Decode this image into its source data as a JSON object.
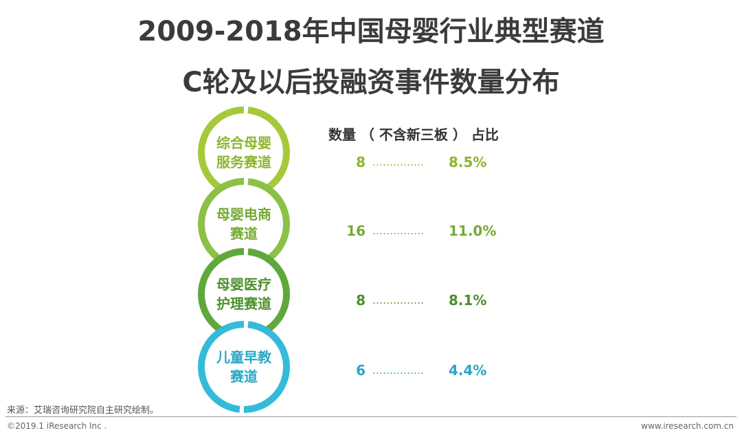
{
  "title": {
    "line1": "2009-2018年中国母婴行业典型赛道",
    "line2": "C轮及以后投融资事件数量分布"
  },
  "header": "数量 （ 不含新三板 ） 占比",
  "dots": "……………",
  "items": [
    {
      "label_line1": "综合母婴",
      "label_line2": "服务赛道",
      "count": "8",
      "percent": "8.5%",
      "color": "#a6c93a",
      "text_color": "#8db52c"
    },
    {
      "label_line1": "母婴电商",
      "label_line2": "赛道",
      "count": "16",
      "percent": "11.0%",
      "color": "#8cc145",
      "text_color": "#76a933"
    },
    {
      "label_line1": "母婴医疗",
      "label_line2": "护理赛道",
      "count": "8",
      "percent": "8.1%",
      "color": "#5fa83c",
      "text_color": "#4c8f2c"
    },
    {
      "label_line1": "儿童早教",
      "label_line2": "赛道",
      "count": "6",
      "percent": "4.4%",
      "color": "#34bbd9",
      "text_color": "#2aa6c6"
    }
  ],
  "source": "来源：艾瑞咨询研究院自主研究绘制。",
  "footer": {
    "copyright": "©2019.1 iResearch Inc .",
    "site": "www.iresearch.com.cn"
  }
}
